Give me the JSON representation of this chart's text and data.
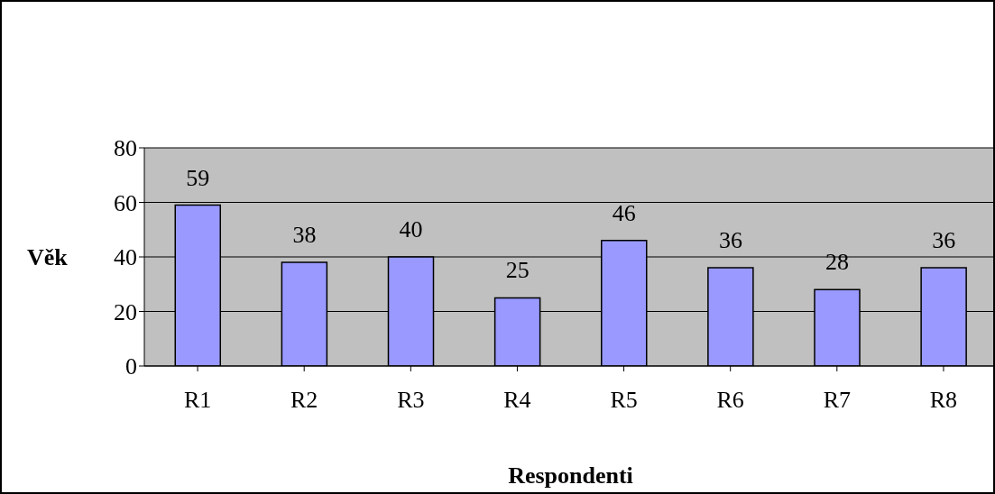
{
  "chart_data": {
    "type": "bar",
    "xlabel": "Respondenti",
    "ylabel": "Věk",
    "categories": [
      "R1",
      "R2",
      "R3",
      "R4",
      "R5",
      "R6",
      "R7",
      "R8"
    ],
    "values": [
      59,
      38,
      40,
      25,
      46,
      36,
      28,
      36
    ],
    "color": "#9999ff",
    "ylim": [
      0,
      80
    ],
    "yticks": [
      0,
      20,
      40,
      60,
      80
    ],
    "grid": "y",
    "data_labels": true
  }
}
